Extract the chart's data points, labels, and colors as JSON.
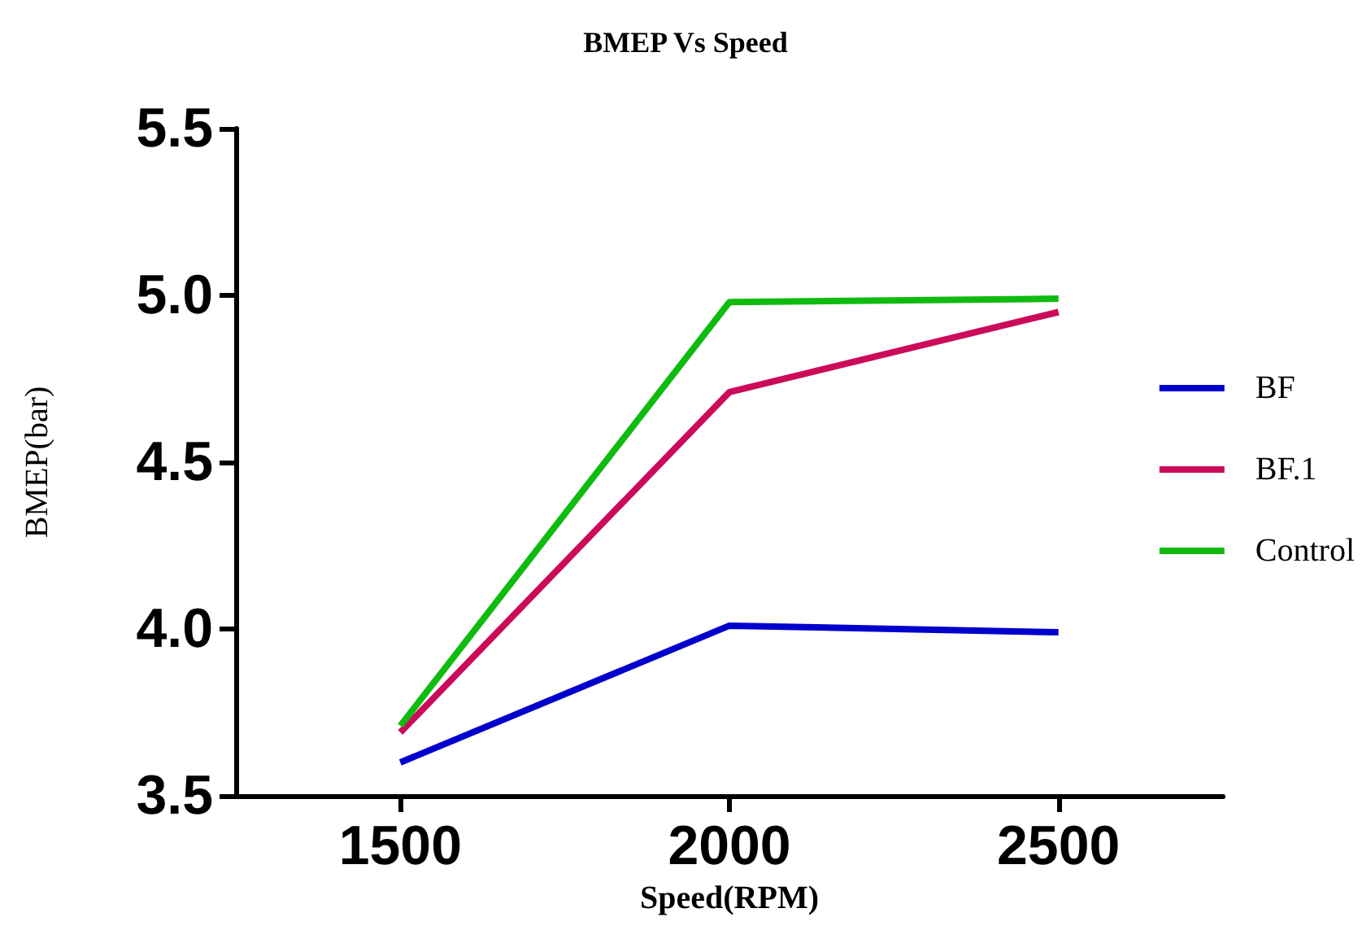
{
  "chart_data": {
    "type": "line",
    "title": "BMEP Vs Speed",
    "xlabel": "Speed(RPM)",
    "ylabel": "BMEP(bar)",
    "x": [
      1500,
      2000,
      2500
    ],
    "series": [
      {
        "name": "BF",
        "color": "#0000cc",
        "values": [
          3.6,
          4.01,
          3.99
        ]
      },
      {
        "name": "BF.1",
        "color": "#cc0a5a",
        "values": [
          3.69,
          4.71,
          4.95
        ]
      },
      {
        "name": "Control",
        "color": "#10bb10",
        "values": [
          3.71,
          4.98,
          4.99
        ]
      }
    ],
    "xlim": [
      1250,
      2750
    ],
    "xticks": [
      1500,
      2000,
      2500
    ],
    "ylim": [
      3.5,
      5.5
    ],
    "yticks": [
      3.5,
      {
        "value": 4,
        "label": "4.0"
      },
      4.5,
      {
        "value": 5,
        "label": "5.0"
      },
      5.5
    ],
    "grid": false,
    "legend": "right",
    "marker": "none",
    "line_style": "solid"
  }
}
